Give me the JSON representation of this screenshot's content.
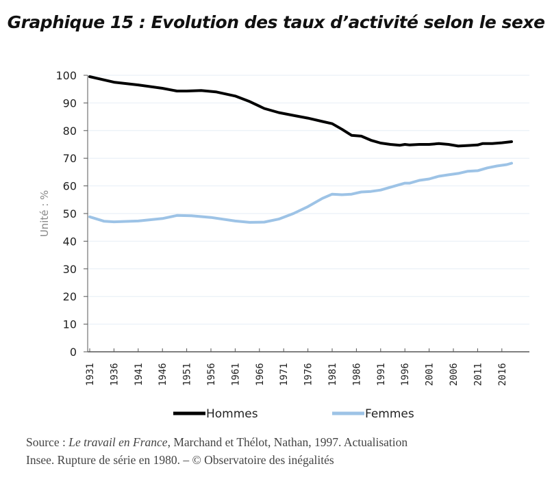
{
  "title": "Graphique 15 : Evolution des taux d’activité selon le sexe",
  "chart_data": {
    "type": "line",
    "title": "Graphique 15 : Evolution des taux d’activité selon le sexe",
    "xlabel": "",
    "ylabel": "Unité : %",
    "ylim": [
      0,
      100
    ],
    "xlim": [
      1931,
      2018
    ],
    "yticks": [
      "0",
      "10",
      "20",
      "30",
      "40",
      "50",
      "60",
      "70",
      "80",
      "90",
      "100"
    ],
    "xticks": [
      "1931",
      "1936",
      "1941",
      "1946",
      "1951",
      "1956",
      "1961",
      "1966",
      "1971",
      "1976",
      "1981",
      "1986",
      "1991",
      "1996",
      "2001",
      "2006",
      "2011",
      "2016"
    ],
    "grid": true,
    "legend": "bottom",
    "series": [
      {
        "name": "Hommes",
        "color": "#000000",
        "x": [
          1931,
          1936,
          1941,
          1946,
          1949,
          1951,
          1954,
          1957,
          1961,
          1964,
          1967,
          1970,
          1973,
          1976,
          1979,
          1981,
          1983,
          1985,
          1987,
          1989,
          1991,
          1993,
          1995,
          1996,
          1997,
          1999,
          2001,
          2003,
          2005,
          2007,
          2009,
          2011,
          2012,
          2014,
          2016,
          2018
        ],
        "y": [
          99.5,
          97.5,
          96.5,
          95.3,
          94.3,
          94.3,
          94.5,
          94,
          92.5,
          90.5,
          88,
          86.5,
          85.5,
          84.5,
          83.3,
          82.5,
          80.5,
          78.3,
          78,
          76.5,
          75.5,
          75,
          74.7,
          75,
          74.8,
          75,
          75,
          75.3,
          75,
          74.4,
          74.6,
          74.8,
          75.3,
          75.3,
          75.6,
          76
        ]
      },
      {
        "name": "Femmes",
        "color": "#9dc3e6",
        "x": [
          1931,
          1934,
          1936,
          1941,
          1946,
          1949,
          1952,
          1956,
          1961,
          1964,
          1967,
          1970,
          1973,
          1976,
          1979,
          1981,
          1983,
          1985,
          1987,
          1989,
          1991,
          1993,
          1995,
          1996,
          1997,
          1999,
          2001,
          2003,
          2005,
          2007,
          2009,
          2011,
          2013,
          2015,
          2017,
          2018
        ],
        "y": [
          48.8,
          47.2,
          47,
          47.3,
          48.2,
          49.3,
          49.2,
          48.6,
          47.3,
          46.8,
          46.9,
          48,
          50,
          52.5,
          55.5,
          57,
          56.8,
          57,
          57.8,
          58,
          58.5,
          59.5,
          60.5,
          61,
          61,
          62,
          62.5,
          63.5,
          64,
          64.5,
          65.3,
          65.5,
          66.5,
          67.2,
          67.7,
          68.2
        ]
      }
    ]
  },
  "source": {
    "line1_prefix": "Source : ",
    "line1_italic": "Le travail en France",
    "line1_rest": ", Marchand et Thélot, Nathan, 1997. Actualisation",
    "line2": "Insee. Rupture de série en 1980. – © Observatoire des inégalités"
  }
}
